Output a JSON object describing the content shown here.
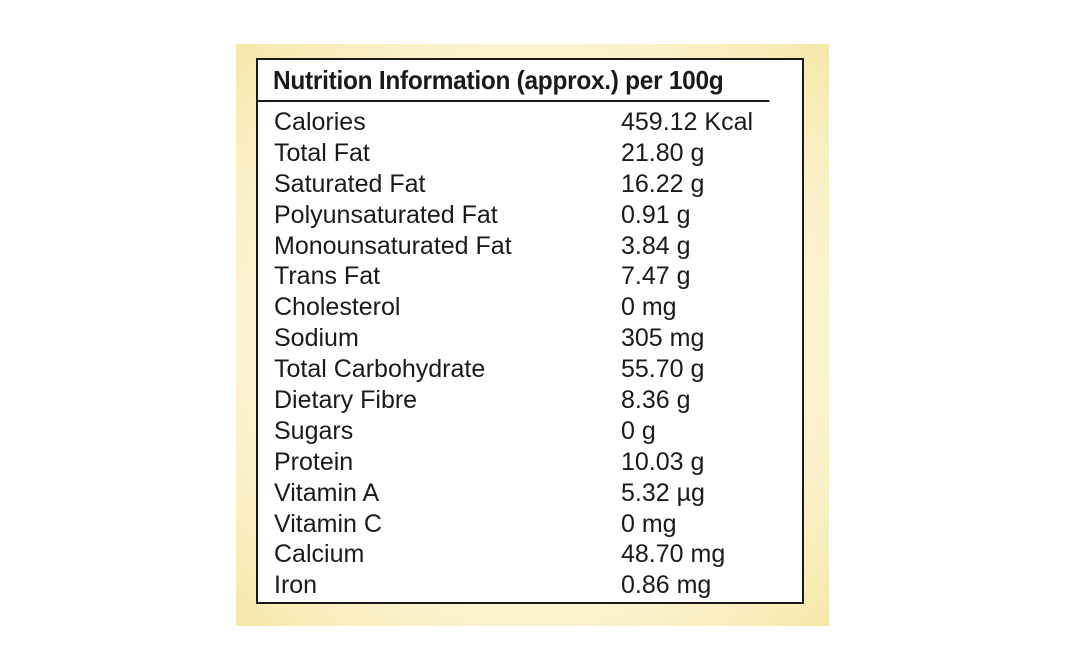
{
  "title": "Nutrition Information (approx.) per 100g",
  "rows": [
    {
      "name": "Calories",
      "value": "459.12 Kcal"
    },
    {
      "name": "Total Fat",
      "value": "21.80 g"
    },
    {
      "name": "Saturated Fat",
      "value": "16.22 g"
    },
    {
      "name": "Polyunsaturated Fat",
      "value": "0.91 g"
    },
    {
      "name": "Monounsaturated Fat",
      "value": "3.84 g"
    },
    {
      "name": "Trans Fat",
      "value": "7.47 g"
    },
    {
      "name": "Cholesterol",
      "value": "0 mg"
    },
    {
      "name": "Sodium",
      "value": "305 mg"
    },
    {
      "name": "Total Carbohydrate",
      "value": "55.70 g"
    },
    {
      "name": "Dietary Fibre",
      "value": "8.36 g"
    },
    {
      "name": "Sugars",
      "value": "0 g"
    },
    {
      "name": "Protein",
      "value": "10.03 g"
    },
    {
      "name": "Vitamin A",
      "value": "5.32 µg"
    },
    {
      "name": "Vitamin C",
      "value": "0 mg"
    },
    {
      "name": "Calcium",
      "value": "48.70 mg"
    },
    {
      "name": "Iron",
      "value": "0.86 mg"
    }
  ]
}
